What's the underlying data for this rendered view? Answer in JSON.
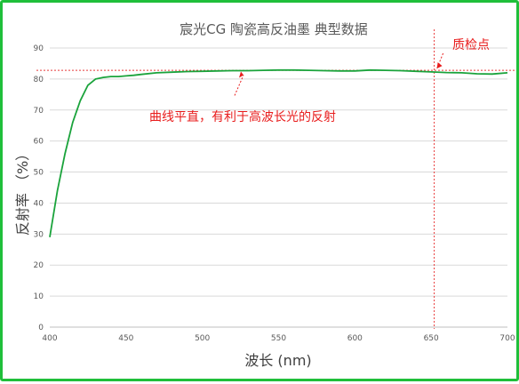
{
  "chart_data": {
    "type": "line",
    "title": "宸光CG  陶瓷高反油墨 典型数据",
    "xlabel": "波长 (nm)",
    "ylabel": "反射率 （%）",
    "xlim": [
      400,
      700
    ],
    "ylim": [
      0,
      90
    ],
    "x_ticks": [
      400,
      450,
      500,
      550,
      600,
      650,
      700
    ],
    "y_ticks": [
      0,
      10,
      20,
      30,
      40,
      50,
      60,
      70,
      80,
      90
    ],
    "grid": "horizontal",
    "legend": "none",
    "series": [
      {
        "color": "#1aa33b",
        "x": [
          400,
          405,
          410,
          415,
          420,
          425,
          430,
          435,
          440,
          445,
          450,
          455,
          460,
          470,
          480,
          490,
          500,
          510,
          520,
          530,
          540,
          550,
          560,
          570,
          580,
          590,
          600,
          610,
          620,
          630,
          640,
          650,
          660,
          670,
          680,
          690,
          700
        ],
        "y": [
          29,
          44,
          56,
          66,
          73,
          78,
          80,
          80.5,
          80.8,
          80.8,
          81,
          81.2,
          81.5,
          82,
          82.2,
          82.4,
          82.5,
          82.6,
          82.7,
          82.7,
          82.8,
          82.9,
          82.9,
          82.8,
          82.7,
          82.6,
          82.6,
          82.9,
          82.8,
          82.7,
          82.5,
          82.3,
          82.1,
          82.0,
          81.7,
          81.6,
          82.0
        ]
      }
    ],
    "reference_lines": {
      "y": 82.8,
      "x": 652,
      "color": "#e83a3a"
    },
    "annotations": [
      {
        "text": "曲线平直，有利于高波长光的反射",
        "color": "#e81c1c",
        "x": 527,
        "y": 82.7
      },
      {
        "text": "质检点",
        "color": "#e81c1c",
        "x": 652,
        "y": 82.8
      }
    ]
  }
}
